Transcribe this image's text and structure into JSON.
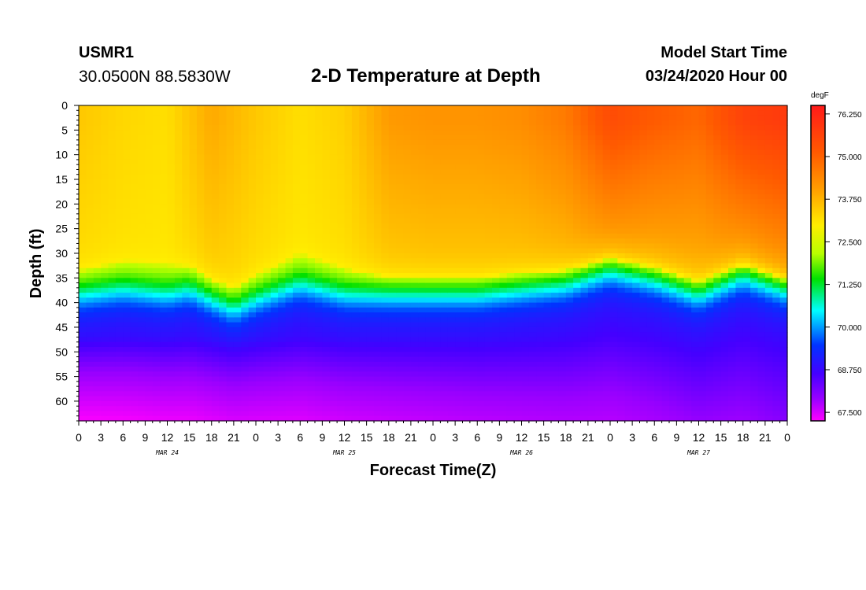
{
  "header": {
    "station": "USMR1",
    "coords": "30.0500N 88.5830W",
    "title": "2-D Temperature at Depth",
    "model_start_label": "Model Start Time",
    "model_start_value": "03/24/2020 Hour 00"
  },
  "chart_data": {
    "type": "heatmap",
    "title": "2-D Temperature at Depth",
    "xlabel": "Forecast Time(Z)",
    "ylabel": "Depth (ft)",
    "x_range_hours": [
      0,
      96
    ],
    "y_range_ft": [
      0,
      64
    ],
    "x_tick_labels": [
      "0",
      "3",
      "6",
      "9",
      "12",
      "15",
      "18",
      "21",
      "0",
      "3",
      "6",
      "9",
      "12",
      "15",
      "18",
      "21",
      "0",
      "3",
      "6",
      "9",
      "12",
      "15",
      "18",
      "21",
      "0",
      "3",
      "6",
      "9",
      "12",
      "15",
      "18",
      "21",
      "0"
    ],
    "y_tick_labels": [
      "0",
      "5",
      "10",
      "15",
      "20",
      "25",
      "30",
      "35",
      "40",
      "45",
      "50",
      "55",
      "60"
    ],
    "y_tick_values": [
      0,
      5,
      10,
      15,
      20,
      25,
      30,
      35,
      40,
      45,
      50,
      55,
      60
    ],
    "date_labels": [
      {
        "label": "MAR 24",
        "hour": 12
      },
      {
        "label": "MAR 25",
        "hour": 36
      },
      {
        "label": "MAR 26",
        "hour": 60
      },
      {
        "label": "MAR 27",
        "hour": 84
      }
    ],
    "colorbar": {
      "units": "degF",
      "min": 67.25,
      "max": 76.5,
      "labels": [
        "76.250",
        "75.000",
        "73.750",
        "72.500",
        "71.250",
        "70.000",
        "68.750",
        "67.500"
      ],
      "label_values": [
        76.25,
        75.0,
        73.75,
        72.5,
        71.25,
        70.0,
        68.75,
        67.5
      ]
    },
    "thermocline": {
      "hours": [
        0,
        6,
        12,
        15,
        21,
        24,
        30,
        36,
        42,
        48,
        54,
        60,
        66,
        72,
        78,
        84,
        90,
        96
      ],
      "depth_ft": [
        38,
        37,
        38,
        37,
        41,
        39,
        36,
        38,
        38,
        38,
        38,
        37,
        36,
        33,
        35,
        38,
        34,
        37
      ]
    },
    "surface_layer": {
      "hours": [
        0,
        6,
        12,
        18,
        24,
        30,
        36,
        42,
        48,
        54,
        60,
        66,
        72,
        78,
        84,
        90,
        96
      ],
      "temp_degF": [
        73.5,
        73.3,
        73.2,
        73.9,
        73.5,
        73.2,
        73.4,
        74.1,
        74.2,
        74.2,
        74.3,
        74.6,
        75.4,
        75.1,
        74.9,
        75.6,
        75.8
      ]
    }
  }
}
